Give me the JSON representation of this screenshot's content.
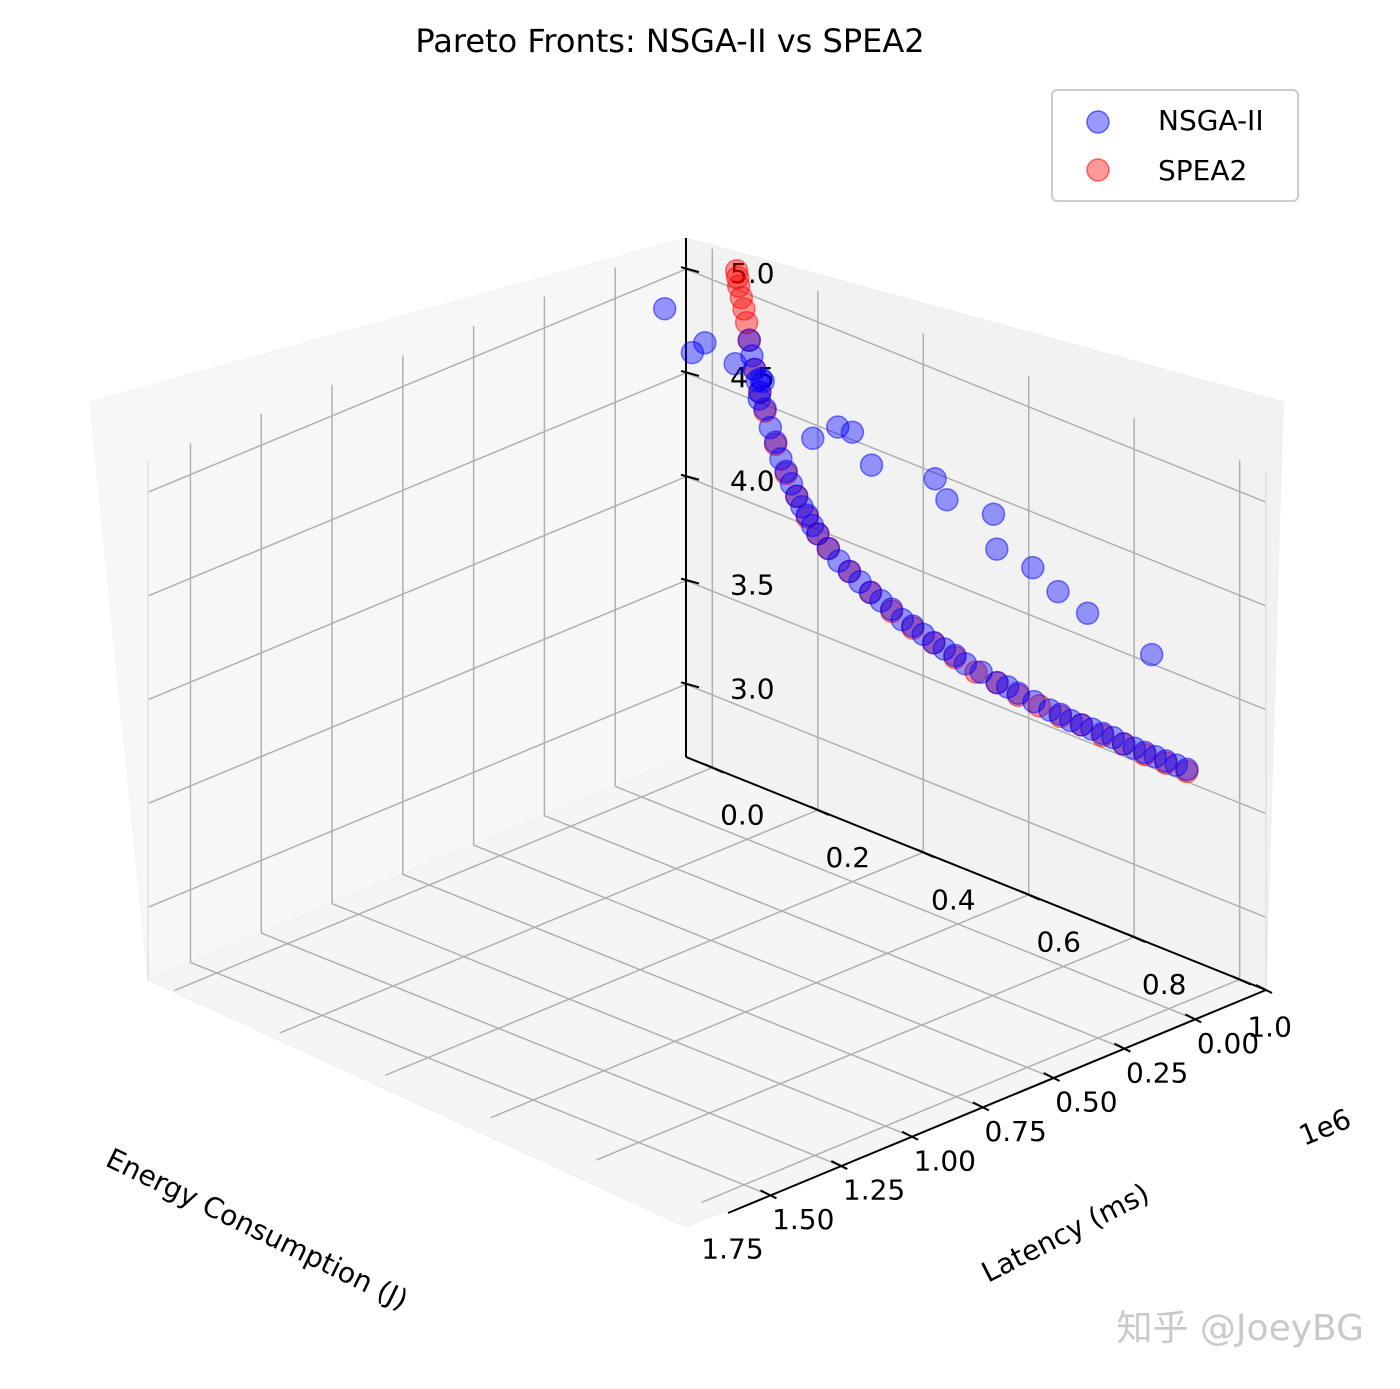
{
  "watermark": "知乎 @JoeyBG",
  "chart_data": {
    "type": "scatter",
    "title": "Pareto Fronts: NSGA-II vs SPEA2",
    "xlabel": "Energy Consumption (J)",
    "ylabel": "Latency (ms)",
    "zlabel": "",
    "grid": true,
    "legend_position": "top-right",
    "x_ticks": [
      "0.00",
      "0.25",
      "0.50",
      "0.75",
      "1.00",
      "1.25",
      "1.50",
      "1.75"
    ],
    "y_ticks": [
      "0.0",
      "0.2",
      "0.4",
      "0.6",
      "0.8",
      "1.0"
    ],
    "y_offset_label": "1e6",
    "z_ticks": [
      "3.0",
      "3.5",
      "4.0",
      "4.5",
      "5.0"
    ],
    "xlim": [
      0,
      1.9
    ],
    "ylim": [
      -0.05,
      1.05
    ],
    "zlim": [
      2.65,
      5.15
    ],
    "series": [
      {
        "name": "NSGA-II",
        "color": "#0000ff",
        "points": [
          [
            0.0,
            0.9,
            3.56
          ],
          [
            0.0,
            0.88,
            3.56
          ],
          [
            0.0,
            0.86,
            3.56
          ],
          [
            0.0,
            0.84,
            3.56
          ],
          [
            0.0,
            0.82,
            3.56
          ],
          [
            0.0,
            0.8,
            3.56
          ],
          [
            0.0,
            0.78,
            3.56
          ],
          [
            0.0,
            0.76,
            3.57
          ],
          [
            0.0,
            0.74,
            3.57
          ],
          [
            0.0,
            0.72,
            3.57
          ],
          [
            0.0,
            0.7,
            3.57
          ],
          [
            0.0,
            0.68,
            3.57
          ],
          [
            0.0,
            0.66,
            3.58
          ],
          [
            0.0,
            0.64,
            3.58
          ],
          [
            0.0,
            0.61,
            3.59
          ],
          [
            0.0,
            0.58,
            3.6
          ],
          [
            0.0,
            0.56,
            3.61
          ],
          [
            0.0,
            0.54,
            3.61
          ],
          [
            0.0,
            0.51,
            3.63
          ],
          [
            0.0,
            0.48,
            3.64
          ],
          [
            0.0,
            0.46,
            3.66
          ],
          [
            0.0,
            0.44,
            3.67
          ],
          [
            0.0,
            0.42,
            3.68
          ],
          [
            0.0,
            0.4,
            3.7
          ],
          [
            0.0,
            0.38,
            3.72
          ],
          [
            0.0,
            0.36,
            3.73
          ],
          [
            0.0,
            0.34,
            3.76
          ],
          [
            0.0,
            0.32,
            3.78
          ],
          [
            0.0,
            0.3,
            3.8
          ],
          [
            0.0,
            0.28,
            3.83
          ],
          [
            0.0,
            0.26,
            3.86
          ],
          [
            0.0,
            0.24,
            3.89
          ],
          [
            0.0,
            0.22,
            3.93
          ],
          [
            0.0,
            0.2,
            3.98
          ],
          [
            0.0,
            0.19,
            4.01
          ],
          [
            0.0,
            0.18,
            4.05
          ],
          [
            0.0,
            0.17,
            4.08
          ],
          [
            0.0,
            0.16,
            4.12
          ],
          [
            0.0,
            0.15,
            4.17
          ],
          [
            0.0,
            0.14,
            4.22
          ],
          [
            0.0,
            0.13,
            4.27
          ],
          [
            0.0,
            0.12,
            4.34
          ],
          [
            0.0,
            0.11,
            4.4
          ],
          [
            0.0,
            0.1,
            4.48
          ],
          [
            0.0,
            0.09,
            4.55
          ],
          [
            0.0,
            0.085,
            4.6
          ],
          [
            0.0,
            0.08,
            4.65
          ],
          [
            0.0,
            0.075,
            4.71
          ],
          [
            0.0,
            0.07,
            4.78
          ],
          [
            0.05,
            0.86,
            4.1
          ],
          [
            0.09,
            0.76,
            4.22
          ],
          [
            0.12,
            0.72,
            4.3
          ],
          [
            0.06,
            0.64,
            4.3
          ],
          [
            0.15,
            0.62,
            4.42
          ],
          [
            0.05,
            0.56,
            4.47
          ],
          [
            0.14,
            0.52,
            4.55
          ],
          [
            0.07,
            0.46,
            4.55
          ],
          [
            0.22,
            0.42,
            4.66
          ],
          [
            0.26,
            0.33,
            4.72
          ],
          [
            0.12,
            0.33,
            4.67
          ],
          [
            0.3,
            0.25,
            4.85
          ],
          [
            0.2,
            0.2,
            4.84
          ],
          [
            0.35,
            0.15,
            5.0
          ],
          [
            0.25,
            0.12,
            4.96
          ],
          [
            0.28,
            0.06,
            5.08
          ],
          [
            0.06,
            0.27,
            4.6
          ],
          [
            0.1,
            0.15,
            4.72
          ],
          [
            0.18,
            0.14,
            4.84
          ]
        ]
      },
      {
        "name": "SPEA2",
        "color": "#ff0000",
        "points": [
          [
            0.0,
            0.9,
            3.55
          ],
          [
            0.0,
            0.86,
            3.55
          ],
          [
            0.0,
            0.82,
            3.55
          ],
          [
            0.0,
            0.78,
            3.56
          ],
          [
            0.0,
            0.74,
            3.56
          ],
          [
            0.0,
            0.7,
            3.57
          ],
          [
            0.0,
            0.66,
            3.57
          ],
          [
            0.0,
            0.62,
            3.58
          ],
          [
            0.0,
            0.58,
            3.59
          ],
          [
            0.0,
            0.54,
            3.61
          ],
          [
            0.0,
            0.5,
            3.62
          ],
          [
            0.0,
            0.46,
            3.65
          ],
          [
            0.0,
            0.42,
            3.68
          ],
          [
            0.0,
            0.38,
            3.71
          ],
          [
            0.0,
            0.34,
            3.75
          ],
          [
            0.0,
            0.3,
            3.8
          ],
          [
            0.0,
            0.26,
            3.86
          ],
          [
            0.0,
            0.22,
            3.93
          ],
          [
            0.0,
            0.2,
            3.98
          ],
          [
            0.0,
            0.18,
            4.04
          ],
          [
            0.0,
            0.16,
            4.12
          ],
          [
            0.0,
            0.14,
            4.21
          ],
          [
            0.0,
            0.12,
            4.33
          ],
          [
            0.0,
            0.1,
            4.47
          ],
          [
            0.0,
            0.09,
            4.55
          ],
          [
            0.0,
            0.08,
            4.65
          ],
          [
            0.0,
            0.07,
            4.78
          ],
          [
            0.0,
            0.065,
            4.86
          ],
          [
            0.0,
            0.06,
            4.92
          ],
          [
            0.0,
            0.055,
            4.97
          ],
          [
            0.0,
            0.05,
            5.02
          ],
          [
            0.0,
            0.048,
            5.06
          ],
          [
            0.0,
            0.046,
            5.09
          ]
        ]
      }
    ]
  }
}
